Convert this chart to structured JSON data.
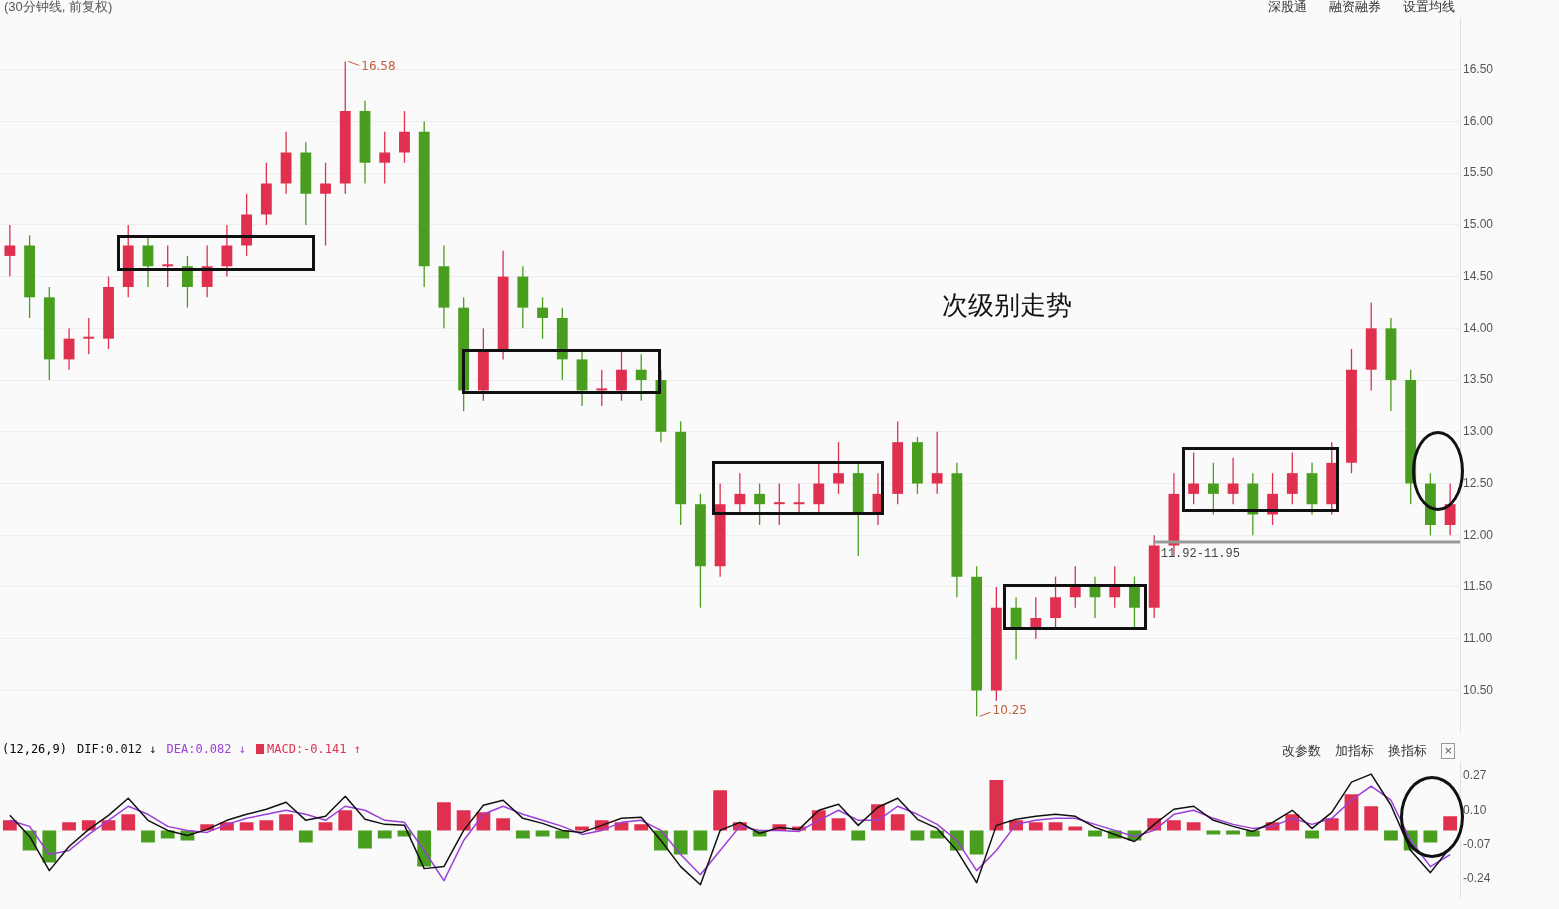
{
  "chart_data": [
    {
      "type": "candlestick",
      "title": "(30分钟线, 前复权)",
      "categories": [
        null,
        null,
        null,
        null,
        null,
        null,
        null,
        null,
        null,
        null,
        null,
        null,
        null,
        null,
        null,
        null,
        null,
        null,
        null,
        null,
        null,
        null,
        null,
        null,
        null,
        null,
        null,
        null,
        null,
        null,
        null,
        null,
        null,
        null,
        null,
        null,
        null,
        null,
        null,
        null,
        null,
        null,
        null,
        null,
        null,
        null,
        null,
        null,
        null,
        null,
        null,
        null,
        null,
        null,
        null,
        null,
        null,
        null,
        null,
        null,
        null,
        null,
        null,
        null,
        null,
        null,
        null,
        null,
        null,
        null,
        null,
        null,
        null,
        null
      ],
      "ohlc": [
        [
          14.7,
          15.0,
          14.5,
          14.8
        ],
        [
          14.8,
          14.9,
          14.1,
          14.3
        ],
        [
          14.3,
          14.4,
          13.5,
          13.7
        ],
        [
          13.7,
          14.0,
          13.6,
          13.9
        ],
        [
          13.9,
          14.1,
          13.75,
          13.9
        ],
        [
          13.9,
          14.5,
          13.8,
          14.4
        ],
        [
          14.4,
          15.0,
          14.3,
          14.8
        ],
        [
          14.8,
          14.9,
          14.4,
          14.6
        ],
        [
          14.6,
          14.8,
          14.4,
          14.6
        ],
        [
          14.6,
          14.7,
          14.2,
          14.4
        ],
        [
          14.4,
          14.8,
          14.3,
          14.6
        ],
        [
          14.6,
          15.0,
          14.5,
          14.8
        ],
        [
          14.8,
          15.3,
          14.7,
          15.1
        ],
        [
          15.1,
          15.6,
          15.0,
          15.4
        ],
        [
          15.4,
          15.9,
          15.3,
          15.7
        ],
        [
          15.7,
          15.8,
          15.0,
          15.3
        ],
        [
          15.3,
          15.6,
          14.8,
          15.4
        ],
        [
          15.4,
          16.58,
          15.3,
          16.1
        ],
        [
          16.1,
          16.2,
          15.4,
          15.6
        ],
        [
          15.6,
          15.9,
          15.4,
          15.7
        ],
        [
          15.7,
          16.1,
          15.6,
          15.9
        ],
        [
          15.9,
          16.0,
          14.4,
          14.6
        ],
        [
          14.6,
          14.8,
          14.0,
          14.2
        ],
        [
          14.2,
          14.3,
          13.2,
          13.4
        ],
        [
          13.4,
          14.0,
          13.3,
          13.8
        ],
        [
          13.8,
          14.75,
          13.7,
          14.5
        ],
        [
          14.5,
          14.6,
          14.0,
          14.2
        ],
        [
          14.2,
          14.3,
          13.9,
          14.1
        ],
        [
          14.1,
          14.2,
          13.5,
          13.7
        ],
        [
          13.7,
          13.8,
          13.25,
          13.4
        ],
        [
          13.4,
          13.6,
          13.25,
          13.4
        ],
        [
          13.4,
          13.8,
          13.3,
          13.6
        ],
        [
          13.6,
          13.75,
          13.3,
          13.5
        ],
        [
          13.5,
          13.6,
          12.9,
          13.0
        ],
        [
          13.0,
          13.1,
          12.1,
          12.3
        ],
        [
          12.3,
          12.4,
          11.3,
          11.7
        ],
        [
          11.7,
          12.5,
          11.6,
          12.3
        ],
        [
          12.3,
          12.6,
          12.2,
          12.4
        ],
        [
          12.4,
          12.5,
          12.1,
          12.3
        ],
        [
          12.3,
          12.5,
          12.1,
          12.3
        ],
        [
          12.3,
          12.5,
          12.2,
          12.3
        ],
        [
          12.3,
          12.7,
          12.2,
          12.5
        ],
        [
          12.5,
          12.9,
          12.4,
          12.6
        ],
        [
          12.6,
          12.7,
          11.8,
          12.2
        ],
        [
          12.2,
          12.6,
          12.1,
          12.4
        ],
        [
          12.4,
          13.1,
          12.3,
          12.9
        ],
        [
          12.9,
          12.95,
          12.4,
          12.5
        ],
        [
          12.5,
          13.0,
          12.4,
          12.6
        ],
        [
          12.6,
          12.7,
          11.4,
          11.6
        ],
        [
          11.6,
          11.7,
          10.25,
          10.5
        ],
        [
          10.5,
          11.5,
          10.4,
          11.3
        ],
        [
          11.3,
          11.4,
          10.8,
          11.1
        ],
        [
          11.1,
          11.4,
          11.0,
          11.2
        ],
        [
          11.2,
          11.6,
          11.1,
          11.4
        ],
        [
          11.4,
          11.7,
          11.3,
          11.5
        ],
        [
          11.5,
          11.6,
          11.2,
          11.4
        ],
        [
          11.4,
          11.7,
          11.3,
          11.5
        ],
        [
          11.5,
          11.6,
          11.1,
          11.3
        ],
        [
          11.3,
          12.0,
          11.2,
          11.9
        ],
        [
          11.9,
          12.6,
          11.8,
          12.4
        ],
        [
          12.4,
          12.8,
          12.3,
          12.5
        ],
        [
          12.5,
          12.7,
          12.2,
          12.4
        ],
        [
          12.4,
          12.75,
          12.3,
          12.5
        ],
        [
          12.5,
          12.6,
          12.0,
          12.2
        ],
        [
          12.2,
          12.6,
          12.1,
          12.4
        ],
        [
          12.4,
          12.8,
          12.3,
          12.6
        ],
        [
          12.6,
          12.7,
          12.2,
          12.3
        ],
        [
          12.3,
          12.9,
          12.2,
          12.7
        ],
        [
          12.7,
          13.8,
          12.6,
          13.6
        ],
        [
          13.6,
          14.25,
          13.4,
          14.0
        ],
        [
          14.0,
          14.1,
          13.2,
          13.5
        ],
        [
          13.5,
          13.6,
          12.3,
          12.5
        ],
        [
          12.5,
          12.6,
          12.0,
          12.1
        ],
        [
          12.1,
          12.5,
          12.0,
          12.3
        ]
      ],
      "colors": [
        "#e0304f",
        "#4a9e1f",
        "#4a9e1f",
        "#e0304f",
        "#e0304f",
        "#e0304f",
        "#e0304f",
        "#4a9e1f",
        "#e0304f",
        "#4a9e1f",
        "#e0304f",
        "#e0304f",
        "#e0304f",
        "#e0304f",
        "#e0304f",
        "#4a9e1f",
        "#e0304f",
        "#e0304f",
        "#4a9e1f",
        "#e0304f",
        "#e0304f",
        "#4a9e1f",
        "#4a9e1f",
        "#4a9e1f",
        "#e0304f",
        "#e0304f",
        "#4a9e1f",
        "#4a9e1f",
        "#4a9e1f",
        "#4a9e1f",
        "#e0304f",
        "#e0304f",
        "#4a9e1f",
        "#4a9e1f",
        "#4a9e1f",
        "#4a9e1f",
        "#e0304f",
        "#e0304f",
        "#4a9e1f",
        "#e0304f",
        "#e0304f",
        "#e0304f",
        "#e0304f",
        "#4a9e1f",
        "#e0304f",
        "#e0304f",
        "#4a9e1f",
        "#e0304f",
        "#4a9e1f",
        "#4a9e1f",
        "#e0304f",
        "#4a9e1f",
        "#e0304f",
        "#e0304f",
        "#e0304f",
        "#4a9e1f",
        "#e0304f",
        "#4a9e1f",
        "#e0304f",
        "#e0304f",
        "#e0304f",
        "#4a9e1f",
        "#e0304f",
        "#4a9e1f",
        "#e0304f",
        "#e0304f",
        "#4a9e1f",
        "#e0304f",
        "#e0304f",
        "#e0304f",
        "#4a9e1f",
        "#4a9e1f",
        "#4a9e1f",
        "#e0304f"
      ],
      "ylim": [
        10.1,
        17.0
      ],
      "yticks": [
        {
          "value": 10.5,
          "label": "10.50"
        },
        {
          "value": 11,
          "label": "11.00"
        },
        {
          "value": 11.5,
          "label": "11.50"
        },
        {
          "value": 12,
          "label": "12.00"
        },
        {
          "value": 12.5,
          "label": "12.50"
        },
        {
          "value": 13,
          "label": "13.00"
        },
        {
          "value": 13.5,
          "label": "13.50"
        },
        {
          "value": 14,
          "label": "14.00"
        },
        {
          "value": 14.5,
          "label": "14.50"
        },
        {
          "value": 15,
          "label": "15.00"
        },
        {
          "value": 15.5,
          "label": "15.50"
        },
        {
          "value": 16,
          "label": "16.00"
        },
        {
          "value": 16.5,
          "label": "16.50"
        }
      ],
      "grid": "y",
      "tick_labels": "y",
      "bands": [
        {
          "axis": "y",
          "from": 11.92,
          "to": 11.95,
          "label": "11.92-11.95",
          "color": "#999999"
        }
      ],
      "annotations": [
        "深股通",
        "融资融券",
        "设置均线",
        "次级别走势",
        "16.58",
        "10.25"
      ]
    },
    {
      "type": "bar",
      "title": "(12,26,9)",
      "categories": [
        null,
        null,
        null,
        null,
        null,
        null,
        null,
        null,
        null,
        null,
        null,
        null,
        null,
        null,
        null,
        null,
        null,
        null,
        null,
        null,
        null,
        null,
        null,
        null,
        null,
        null,
        null,
        null,
        null,
        null,
        null,
        null,
        null,
        null,
        null,
        null,
        null,
        null,
        null,
        null,
        null,
        null,
        null,
        null,
        null,
        null,
        null,
        null,
        null,
        null,
        null,
        null,
        null,
        null,
        null,
        null,
        null,
        null,
        null,
        null,
        null,
        null,
        null,
        null,
        null,
        null,
        null,
        null,
        null,
        null,
        null,
        null,
        null,
        null
      ],
      "series": [
        {
          "name": "DIF:0.012 ↓",
          "type": "line",
          "color": "#111111",
          "values": [
            0.075,
            -0.03,
            -0.2,
            -0.08,
            0.005,
            0.075,
            0.16,
            0.05,
            0,
            -0.025,
            0.005,
            0.05,
            0.08,
            0.105,
            0.14,
            0.05,
            0.07,
            0.17,
            0.055,
            0.03,
            0.025,
            -0.19,
            -0.18,
            0,
            0.125,
            0.15,
            0.06,
            0.035,
            0,
            -0.01,
            0.025,
            0.06,
            0.065,
            -0.05,
            -0.18,
            -0.27,
            0,
            0.04,
            -0.015,
            0.015,
            0.005,
            0.1,
            0.13,
            0.025,
            0.115,
            0.16,
            0.055,
            0.01,
            -0.1,
            -0.26,
            0.025,
            0.055,
            0.07,
            0.08,
            0.07,
            0.015,
            -0.02,
            -0.055,
            0.03,
            0.105,
            0.12,
            0.05,
            0.02,
            -0.005,
            0.04,
            0.1,
            0.01,
            0.09,
            0.24,
            0.28,
            0.125,
            -0.1,
            -0.21,
            -0.085
          ]
        },
        {
          "name": "DEA:0.082 ↓",
          "type": "line",
          "color": "#9b3fd9",
          "values": [
            0.05,
            0.02,
            -0.12,
            -0.1,
            -0.02,
            0.05,
            0.12,
            0.08,
            0.02,
            0,
            -0.01,
            0.03,
            0.06,
            0.08,
            0.1,
            0.08,
            0.05,
            0.12,
            0.1,
            0.05,
            0.04,
            -0.1,
            -0.25,
            -0.05,
            0.08,
            0.12,
            0.08,
            0.05,
            0.02,
            -0.02,
            0,
            0.04,
            0.05,
            0,
            -0.12,
            -0.22,
            -0.1,
            0.02,
            0,
            0,
            -0.005,
            0.05,
            0.1,
            0.05,
            0.05,
            0.12,
            0.08,
            0.03,
            -0.05,
            -0.2,
            -0.1,
            0.03,
            0.05,
            0.06,
            0.06,
            0.03,
            0,
            -0.03,
            0,
            0.08,
            0.1,
            0.06,
            0.03,
            0.01,
            0.02,
            0.06,
            0.03,
            0.06,
            0.15,
            0.22,
            0.15,
            -0.05,
            -0.18,
            -0.12
          ]
        },
        {
          "name": "MACD:-0.141 ↑",
          "type": "bar",
          "colors": [
            "#e0304f",
            "#4a9e1f",
            "#4a9e1f",
            "#e0304f",
            "#e0304f",
            "#e0304f",
            "#e0304f",
            "#4a9e1f",
            "#4a9e1f",
            "#4a9e1f",
            "#e0304f",
            "#e0304f",
            "#e0304f",
            "#e0304f",
            "#e0304f",
            "#4a9e1f",
            "#e0304f",
            "#e0304f",
            "#4a9e1f",
            "#4a9e1f",
            "#4a9e1f",
            "#4a9e1f",
            "#e0304f",
            "#e0304f",
            "#e0304f",
            "#e0304f",
            "#4a9e1f",
            "#4a9e1f",
            "#4a9e1f",
            "#e0304f",
            "#e0304f",
            "#e0304f",
            "#e0304f",
            "#4a9e1f",
            "#4a9e1f",
            "#4a9e1f",
            "#e0304f",
            "#e0304f",
            "#4a9e1f",
            "#e0304f",
            "#e0304f",
            "#e0304f",
            "#e0304f",
            "#4a9e1f",
            "#e0304f",
            "#e0304f",
            "#4a9e1f",
            "#4a9e1f",
            "#4a9e1f",
            "#4a9e1f",
            "#e0304f",
            "#e0304f",
            "#e0304f",
            "#e0304f",
            "#e0304f",
            "#4a9e1f",
            "#4a9e1f",
            "#4a9e1f",
            "#e0304f",
            "#e0304f",
            "#e0304f",
            "#4a9e1f",
            "#4a9e1f",
            "#4a9e1f",
            "#e0304f",
            "#e0304f",
            "#4a9e1f",
            "#e0304f",
            "#e0304f",
            "#e0304f",
            "#4a9e1f",
            "#4a9e1f",
            "#4a9e1f",
            "#e0304f"
          ],
          "values": [
            0.05,
            -0.1,
            -0.16,
            0.04,
            0.05,
            0.05,
            0.08,
            -0.06,
            -0.04,
            -0.05,
            0.03,
            0.04,
            0.04,
            0.05,
            0.08,
            -0.06,
            0.04,
            0.1,
            -0.09,
            -0.04,
            -0.03,
            -0.18,
            0.14,
            0.1,
            0.09,
            0.06,
            -0.04,
            -0.03,
            -0.04,
            0.02,
            0.05,
            0.04,
            0.03,
            -0.1,
            -0.12,
            -0.1,
            0.2,
            0.04,
            -0.03,
            0.03,
            0.02,
            0.1,
            0.06,
            -0.05,
            0.13,
            0.08,
            -0.05,
            -0.04,
            -0.1,
            -0.12,
            0.25,
            0.05,
            0.04,
            0.04,
            0.02,
            -0.03,
            -0.04,
            -0.05,
            0.06,
            0.05,
            0.04,
            -0.02,
            -0.02,
            -0.03,
            0.04,
            0.08,
            -0.04,
            0.06,
            0.18,
            0.12,
            -0.05,
            -0.1,
            -0.06,
            0.07
          ]
        }
      ],
      "ylim": [
        -0.34,
        0.34
      ],
      "yticks": [
        {
          "value": 0.27,
          "label": "0.27"
        },
        {
          "value": 0.1,
          "label": "0.10"
        },
        {
          "value": -0.07,
          "label": "-0.07"
        },
        {
          "value": -0.24,
          "label": "-0.24"
        }
      ],
      "tick_labels": "y",
      "legend": "top left",
      "annotations": [
        "改参数",
        "加指标",
        "换指标",
        "×"
      ]
    }
  ]
}
